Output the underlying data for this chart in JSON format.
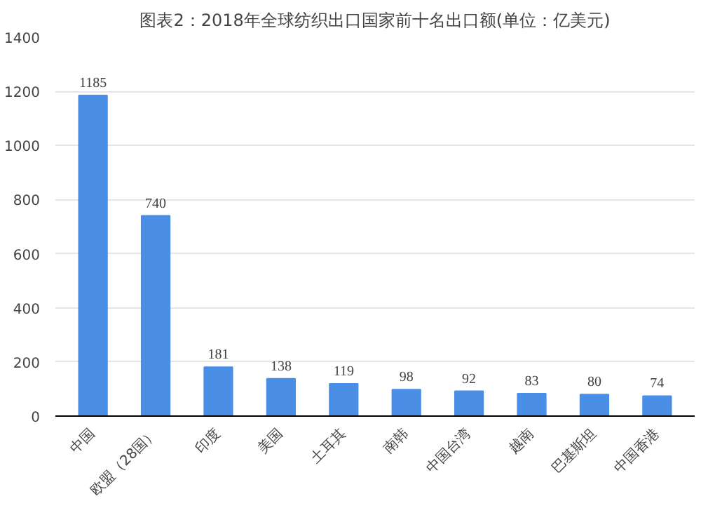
{
  "chart_data": {
    "type": "bar",
    "title": "图表2：2018年全球纺织出口国家前十名出口额(单位：亿美元)",
    "categories": [
      "中国",
      "欧盟（28国）",
      "印度",
      "美国",
      "土耳其",
      "南韩",
      "中国台湾",
      "越南",
      "巴基斯坦",
      "中国香港"
    ],
    "values": [
      1185,
      740,
      181,
      138,
      119,
      98,
      92,
      83,
      80,
      74
    ],
    "color": "#4a8ee6",
    "ylim": [
      0,
      1400
    ],
    "yticks": [
      0,
      200,
      400,
      600,
      800,
      1000,
      1200,
      1400
    ],
    "grid": "y",
    "data_labels": true
  }
}
